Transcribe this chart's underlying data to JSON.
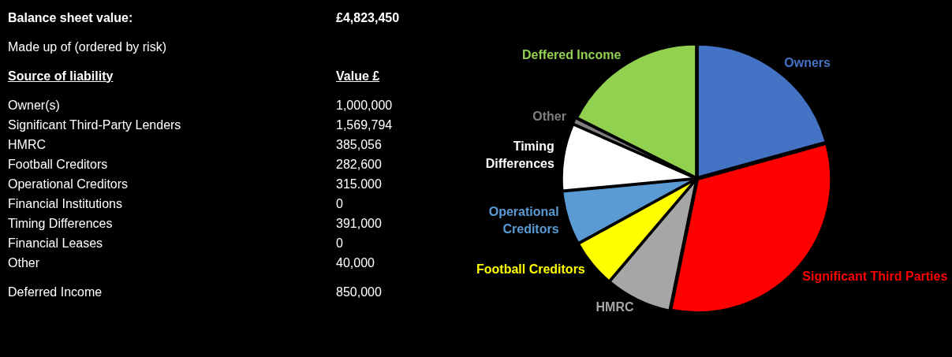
{
  "chart_data": [
    {
      "type": "other",
      "subtitle": "Made up of (ordered by risk)",
      "xlabel": "Source of liability",
      "ylabel": "Value £",
      "annotations": [
        "Balance sheet value:",
        "£4,823,450",
        "Owner(s)",
        "1,000,000",
        "Significant Third-Party Lenders",
        "1,569,794",
        "HMRC",
        "385,056",
        "Football Creditors",
        "282,600",
        "Operational Creditors",
        "315.000",
        "Financial Institutions",
        "0",
        "Timing Differences",
        "391,000",
        "Financial Leases",
        "0",
        "Other",
        "40,000",
        "Deferred Income",
        "850,000"
      ]
    },
    {
      "type": "pie",
      "legend": false,
      "categories": [
        "Owners",
        "Significant Third Parties",
        "HMRC",
        "Football Creditors",
        "Operational Creditors",
        "Timing Differences",
        "Other",
        "Deffered Income"
      ],
      "values": [
        20.7,
        32.5,
        8.0,
        5.8,
        6.5,
        8.1,
        0.8,
        17.6
      ],
      "colors": [
        "#4472c4",
        "#ff0000",
        "#a6a6a6",
        "#ffff00",
        "#5b9bd5",
        "#ffffff",
        "#7f7f7f",
        "#92d050"
      ]
    }
  ]
}
